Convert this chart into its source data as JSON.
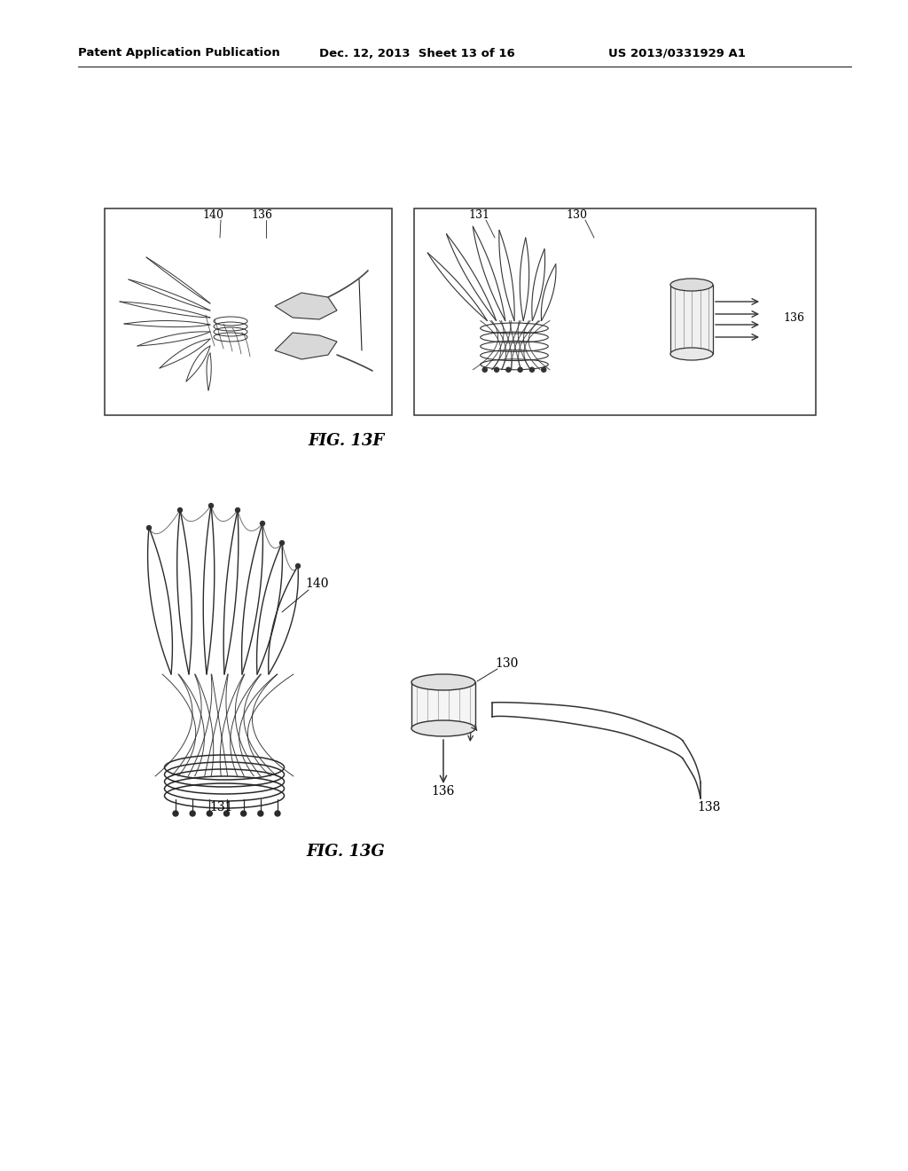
{
  "bg_color": "#ffffff",
  "header_left": "Patent Application Publication",
  "header_mid": "Dec. 12, 2013  Sheet 13 of 16",
  "header_right": "US 2013/0331929 A1",
  "fig13f_label": "FIG. 13F",
  "fig13g_label": "FIG. 13G"
}
